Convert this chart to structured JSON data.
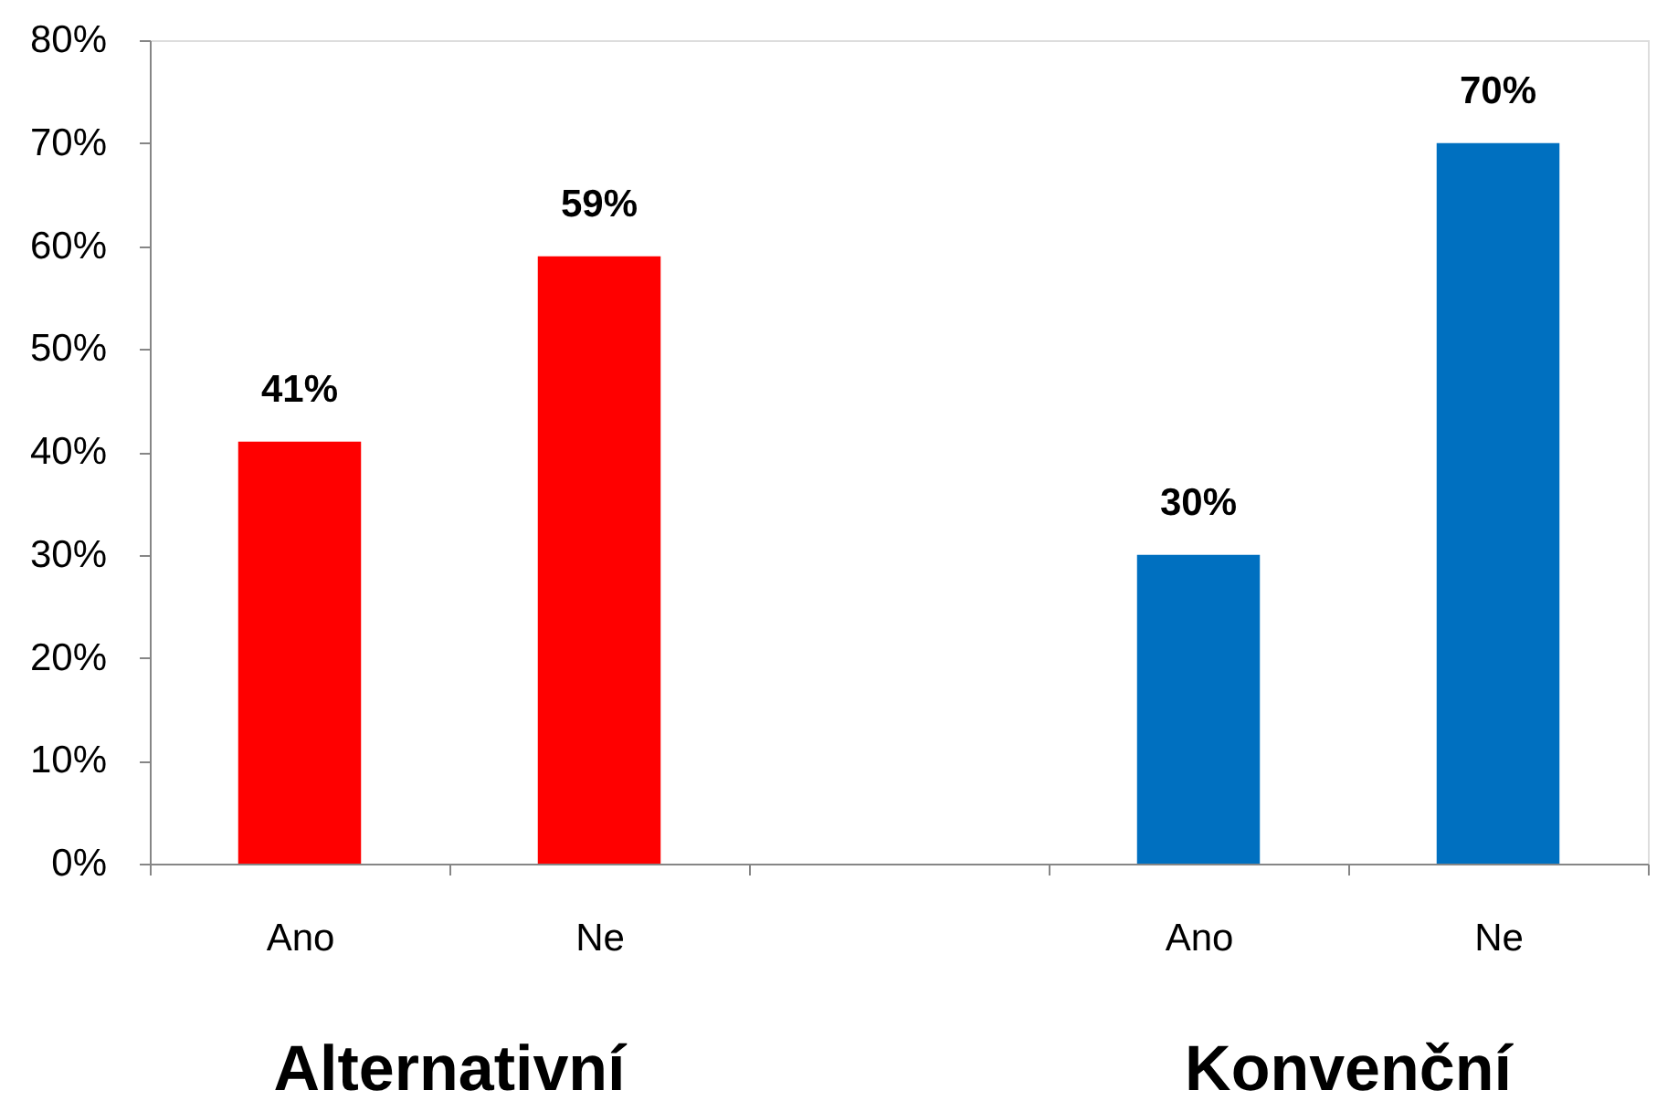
{
  "chart_data": {
    "type": "bar",
    "categories": [
      "Ano",
      "Ne",
      null,
      "Ano",
      "Ne"
    ],
    "series": [
      {
        "name": "Alternativní",
        "color": "#ff0000",
        "values": [
          41,
          59,
          null,
          null,
          null
        ],
        "value_labels": [
          "41%",
          "59%",
          null,
          null,
          null
        ]
      },
      {
        "name": "Konvenční",
        "color": "#0070c0",
        "values": [
          null,
          null,
          null,
          30,
          70
        ],
        "value_labels": [
          null,
          null,
          null,
          "30%",
          "70%"
        ]
      }
    ],
    "ylim": [
      0,
      80
    ],
    "yticks": [
      {
        "value": 0,
        "label": "0%"
      },
      {
        "value": 10,
        "label": "10%"
      },
      {
        "value": 20,
        "label": "20%"
      },
      {
        "value": 30,
        "label": "30%"
      },
      {
        "value": 40,
        "label": "40%"
      },
      {
        "value": 50,
        "label": "50%"
      },
      {
        "value": 60,
        "label": "60%"
      },
      {
        "value": 70,
        "label": "70%"
      },
      {
        "value": 80,
        "label": "80%"
      }
    ]
  }
}
